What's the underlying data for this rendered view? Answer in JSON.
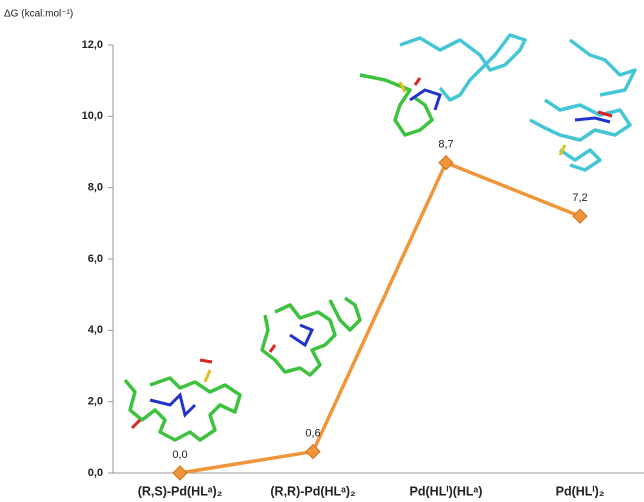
{
  "chart_data": {
    "type": "line",
    "y_label": "ΔG (kcal.mol⁻¹)",
    "categories": [
      "(R,S)-Pd(HLᵃ)₂",
      "(R,R)-Pd(HLᵃ)₂",
      "Pd(HLⁱ)(HLᵃ)",
      "Pd(HLⁱ)₂"
    ],
    "values": [
      0.0,
      0.6,
      8.7,
      7.2
    ],
    "value_labels": [
      "0,0",
      "0,6",
      "8,7",
      "7,2"
    ],
    "color": "#f0953a",
    "ylim": [
      0,
      12
    ],
    "yticks": [
      {
        "value": 0,
        "label": "0,0"
      },
      {
        "value": 2,
        "label": "2,0"
      },
      {
        "value": 4,
        "label": "4,0"
      },
      {
        "value": 6,
        "label": "6,0"
      },
      {
        "value": 8,
        "label": "8,0"
      },
      {
        "value": 10,
        "label": "10,0"
      },
      {
        "value": 12,
        "label": "12,0"
      }
    ]
  }
}
